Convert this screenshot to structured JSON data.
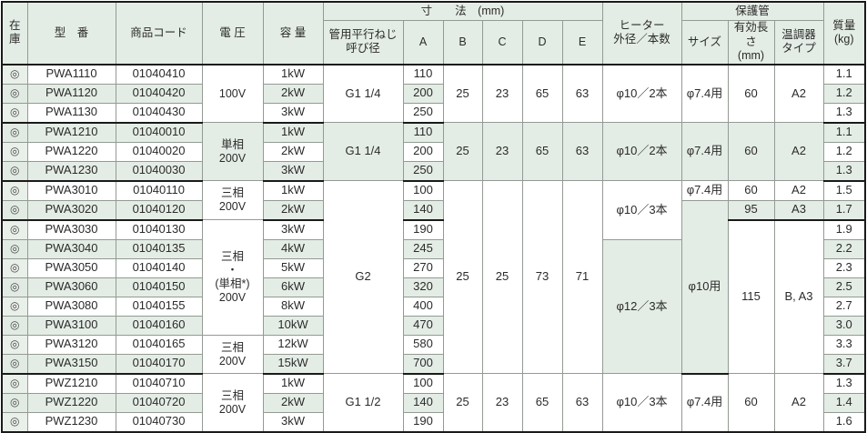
{
  "header": {
    "stock": "在\n庫",
    "model": "型　番",
    "code": "商品コード",
    "voltage": "電 圧",
    "capacity": "容 量",
    "dims_group": "寸　　法　(mm)",
    "screw": "管用平行ねじ\n呼び径",
    "a": "A",
    "b": "B",
    "c": "C",
    "d": "D",
    "e": "E",
    "heater": "ヒーター\n外径／本数",
    "tube_group": "保護管",
    "size": "サイズ",
    "eff_len": "有効長さ\n(mm)",
    "thermo": "温調器\nタイプ",
    "mass": "質量\n(kg)"
  },
  "colors": {
    "stripe": "#e4ede5",
    "header_bg": "#e4ede5",
    "stock_column": "#e9efe9",
    "grid_border": "#939a93",
    "strong_border": "#1a1a1a"
  },
  "rows": [
    {
      "cells": [
        [
          "stock",
          "◎"
        ],
        [
          "model",
          "PWA1110"
        ],
        [
          "code",
          "01040410"
        ],
        [
          "voltage",
          "100V",
          3
        ],
        [
          "capacity",
          "1kW"
        ],
        [
          "screw",
          "G1 1/4",
          3
        ],
        [
          "dim-a",
          "110"
        ],
        [
          "dim-b",
          "25",
          3
        ],
        [
          "dim-c",
          "23",
          3
        ],
        [
          "dim-d",
          "65",
          3
        ],
        [
          "dim-e",
          "63",
          3
        ],
        [
          "heater",
          "φ10／2本",
          3
        ],
        [
          "size",
          "φ7.4用",
          3
        ],
        [
          "eff-len",
          "60",
          3
        ],
        [
          "thermo",
          "A2",
          3
        ],
        [
          "mass",
          "1.1"
        ]
      ]
    },
    {
      "alt": true,
      "cells": [
        [
          "stock",
          "◎"
        ],
        [
          "model",
          "PWA1120"
        ],
        [
          "code",
          "01040420"
        ],
        [
          "capacity",
          "2kW"
        ],
        [
          "dim-a",
          "200"
        ],
        [
          "mass",
          "1.2"
        ]
      ]
    },
    {
      "thick": true,
      "cells": [
        [
          "stock",
          "◎"
        ],
        [
          "model",
          "PWA1130"
        ],
        [
          "code",
          "01040430"
        ],
        [
          "capacity",
          "3kW"
        ],
        [
          "dim-a",
          "250"
        ],
        [
          "mass",
          "1.3"
        ]
      ]
    },
    {
      "alt": true,
      "cells": [
        [
          "stock",
          "◎"
        ],
        [
          "model",
          "PWA1210"
        ],
        [
          "code",
          "01040010"
        ],
        [
          "voltage",
          "単相\n200V",
          3
        ],
        [
          "capacity",
          "1kW"
        ],
        [
          "screw",
          "G1 1/4",
          3
        ],
        [
          "dim-a",
          "110"
        ],
        [
          "dim-b",
          "25",
          3
        ],
        [
          "dim-c",
          "23",
          3
        ],
        [
          "dim-d",
          "65",
          3
        ],
        [
          "dim-e",
          "63",
          3
        ],
        [
          "heater",
          "φ10／2本",
          3
        ],
        [
          "size",
          "φ7.4用",
          3
        ],
        [
          "eff-len",
          "60",
          3
        ],
        [
          "thermo",
          "A2",
          3
        ],
        [
          "mass",
          "1.1"
        ]
      ]
    },
    {
      "cells": [
        [
          "stock",
          "◎"
        ],
        [
          "model",
          "PWA1220"
        ],
        [
          "code",
          "01040020"
        ],
        [
          "capacity",
          "2kW"
        ],
        [
          "dim-a",
          "200"
        ],
        [
          "mass",
          "1.2"
        ]
      ]
    },
    {
      "alt": true,
      "thick": true,
      "cells": [
        [
          "stock",
          "◎"
        ],
        [
          "model",
          "PWA1230"
        ],
        [
          "code",
          "01040030"
        ],
        [
          "capacity",
          "3kW"
        ],
        [
          "dim-a",
          "250"
        ],
        [
          "mass",
          "1.3"
        ]
      ]
    },
    {
      "cells": [
        [
          "stock",
          "◎"
        ],
        [
          "model",
          "PWA3010"
        ],
        [
          "code",
          "01040110"
        ],
        [
          "voltage",
          "三相\n200V",
          2
        ],
        [
          "capacity",
          "1kW"
        ],
        [
          "screw",
          "G2",
          10
        ],
        [
          "dim-a",
          "100"
        ],
        [
          "dim-b",
          "25",
          10
        ],
        [
          "dim-c",
          "25",
          10
        ],
        [
          "dim-d",
          "73",
          10
        ],
        [
          "dim-e",
          "71",
          10
        ],
        [
          "heater",
          "φ10／3本",
          3
        ],
        [
          "size",
          "φ7.4用"
        ],
        [
          "eff-len",
          "60"
        ],
        [
          "thermo",
          "A2"
        ],
        [
          "mass",
          "1.5"
        ]
      ]
    },
    {
      "alt": true,
      "thick": true,
      "cells": [
        [
          "stock",
          "◎"
        ],
        [
          "model",
          "PWA3020"
        ],
        [
          "code",
          "01040120"
        ],
        [
          "capacity",
          "2kW"
        ],
        [
          "dim-a",
          "140"
        ],
        [
          "size",
          "φ10用",
          9
        ],
        [
          "eff-len",
          "95"
        ],
        [
          "thermo",
          "A3"
        ],
        [
          "mass",
          "1.7"
        ]
      ]
    },
    {
      "cells": [
        [
          "stock",
          "◎"
        ],
        [
          "model",
          "PWA3030"
        ],
        [
          "code",
          "01040130"
        ],
        [
          "voltage",
          "三相\n・\n(単相*)\n200V",
          6
        ],
        [
          "capacity",
          "3kW"
        ],
        [
          "dim-a",
          "190"
        ],
        [
          "eff-len",
          "115",
          8
        ],
        [
          "thermo",
          "B, A3",
          8
        ],
        [
          "mass",
          "1.9"
        ]
      ]
    },
    {
      "alt": true,
      "cells": [
        [
          "stock",
          "◎"
        ],
        [
          "model",
          "PWA3040"
        ],
        [
          "code",
          "01040135"
        ],
        [
          "capacity",
          "4kW"
        ],
        [
          "dim-a",
          "245"
        ],
        [
          "heater",
          "φ12／3本",
          7
        ],
        [
          "mass",
          "2.2"
        ]
      ]
    },
    {
      "cells": [
        [
          "stock",
          "◎"
        ],
        [
          "model",
          "PWA3050"
        ],
        [
          "code",
          "01040140"
        ],
        [
          "capacity",
          "5kW"
        ],
        [
          "dim-a",
          "270"
        ],
        [
          "mass",
          "2.3"
        ]
      ]
    },
    {
      "alt": true,
      "cells": [
        [
          "stock",
          "◎"
        ],
        [
          "model",
          "PWA3060"
        ],
        [
          "code",
          "01040150"
        ],
        [
          "capacity",
          "6kW"
        ],
        [
          "dim-a",
          "320"
        ],
        [
          "mass",
          "2.5"
        ]
      ]
    },
    {
      "cells": [
        [
          "stock",
          "◎"
        ],
        [
          "model",
          "PWA3080"
        ],
        [
          "code",
          "01040155"
        ],
        [
          "capacity",
          "8kW"
        ],
        [
          "dim-a",
          "400"
        ],
        [
          "mass",
          "2.7"
        ]
      ]
    },
    {
      "alt": true,
      "cells": [
        [
          "stock",
          "◎"
        ],
        [
          "model",
          "PWA3100"
        ],
        [
          "code",
          "01040160"
        ],
        [
          "capacity",
          "10kW"
        ],
        [
          "dim-a",
          "470"
        ],
        [
          "mass",
          "3.0"
        ]
      ]
    },
    {
      "cells": [
        [
          "stock",
          "◎"
        ],
        [
          "model",
          "PWA3120"
        ],
        [
          "code",
          "01040165"
        ],
        [
          "voltage",
          "三相\n200V",
          2
        ],
        [
          "capacity",
          "12kW"
        ],
        [
          "dim-a",
          "580"
        ],
        [
          "mass",
          "3.3"
        ]
      ]
    },
    {
      "alt": true,
      "thick": true,
      "cells": [
        [
          "stock",
          "◎"
        ],
        [
          "model",
          "PWA3150"
        ],
        [
          "code",
          "01040170"
        ],
        [
          "capacity",
          "15kW"
        ],
        [
          "dim-a",
          "700"
        ],
        [
          "mass",
          "3.7"
        ]
      ]
    },
    {
      "cells": [
        [
          "stock",
          "◎"
        ],
        [
          "model",
          "PWZ1210"
        ],
        [
          "code",
          "01040710"
        ],
        [
          "voltage",
          "三相\n200V",
          3
        ],
        [
          "capacity",
          "1kW"
        ],
        [
          "screw",
          "G1 1/2",
          3
        ],
        [
          "dim-a",
          "100"
        ],
        [
          "dim-b",
          "25",
          3
        ],
        [
          "dim-c",
          "23",
          3
        ],
        [
          "dim-d",
          "65",
          3
        ],
        [
          "dim-e",
          "63",
          3
        ],
        [
          "heater",
          "φ10／3本",
          3
        ],
        [
          "size",
          "φ7.4用",
          3
        ],
        [
          "eff-len",
          "60",
          3
        ],
        [
          "thermo",
          "A2",
          3
        ],
        [
          "mass",
          "1.3"
        ]
      ]
    },
    {
      "alt": true,
      "cells": [
        [
          "stock",
          "◎"
        ],
        [
          "model",
          "PWZ1220"
        ],
        [
          "code",
          "01040720"
        ],
        [
          "capacity",
          "2kW"
        ],
        [
          "dim-a",
          "140"
        ],
        [
          "mass",
          "1.4"
        ]
      ]
    },
    {
      "cells": [
        [
          "stock",
          "◎"
        ],
        [
          "model",
          "PWZ1230"
        ],
        [
          "code",
          "01040730"
        ],
        [
          "capacity",
          "3kW"
        ],
        [
          "dim-a",
          "190"
        ],
        [
          "mass",
          "1.6"
        ]
      ]
    }
  ]
}
